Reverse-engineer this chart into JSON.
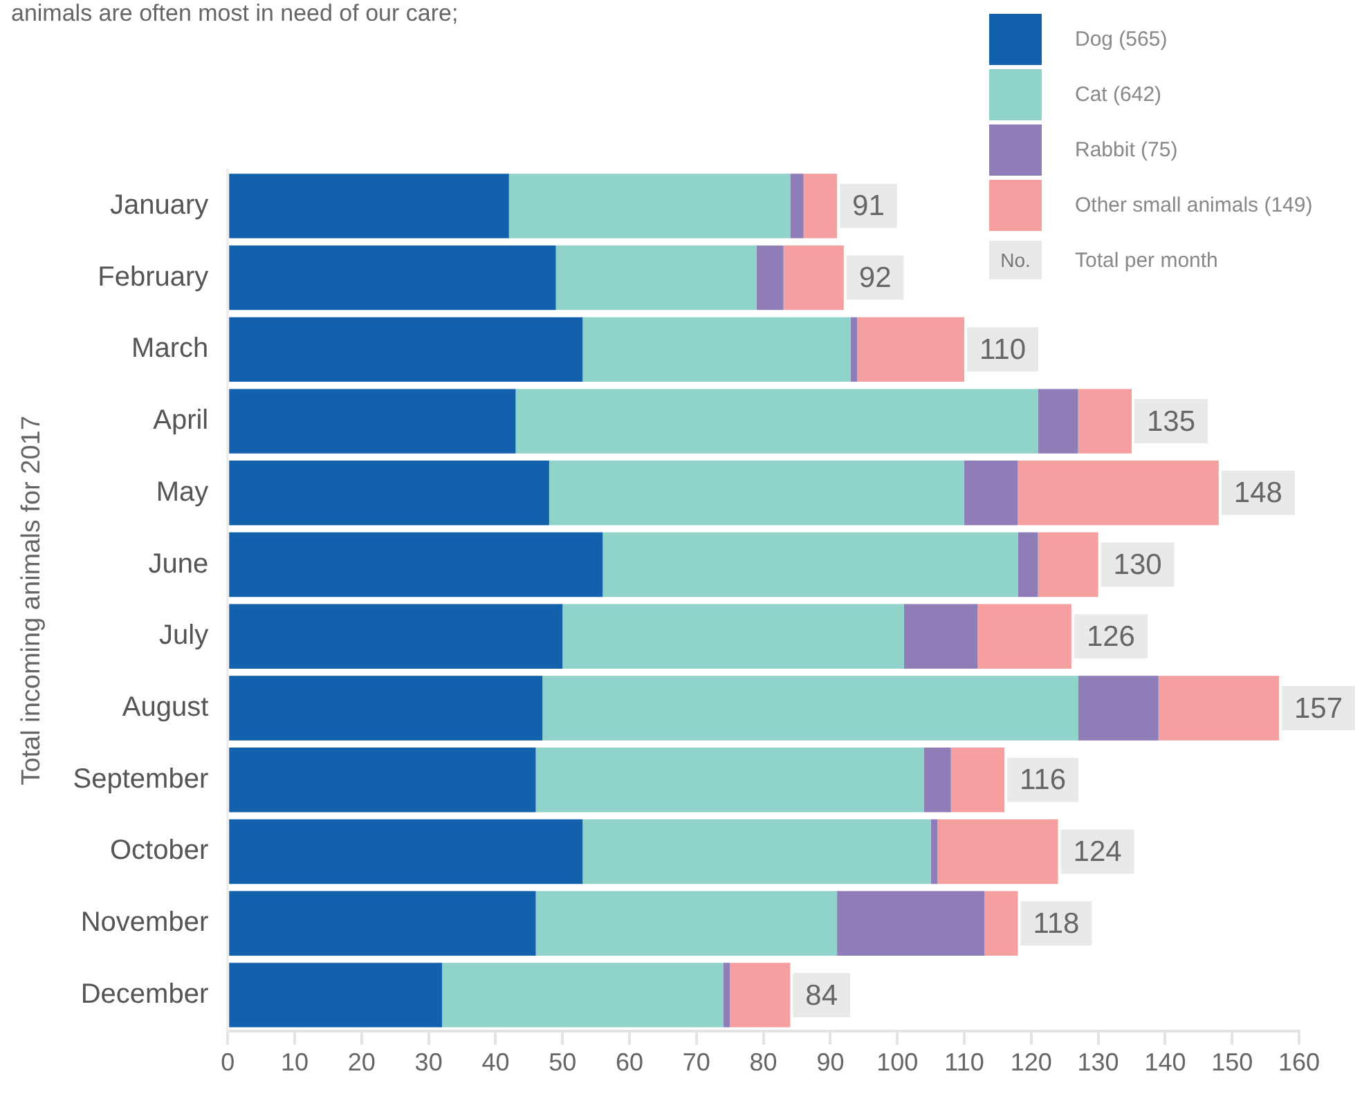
{
  "chart_data": {
    "type": "bar",
    "orientation": "horizontal",
    "stacked": true,
    "subtitle": "animals are often most in need of our care;",
    "ylabel": "Total incoming animals for 2017",
    "categories": [
      "January",
      "February",
      "March",
      "April",
      "May",
      "June",
      "July",
      "August",
      "September",
      "October",
      "November",
      "December"
    ],
    "series": [
      {
        "name": "Dog (565)",
        "color": "#1360ac",
        "values": [
          42,
          49,
          53,
          43,
          48,
          56,
          50,
          47,
          46,
          53,
          46,
          32
        ]
      },
      {
        "name": "Cat (642)",
        "color": "#90d3ca",
        "values": [
          42,
          30,
          40,
          78,
          62,
          62,
          51,
          80,
          58,
          52,
          45,
          42
        ]
      },
      {
        "name": "Rabbit (75)",
        "color": "#8f7db8",
        "values": [
          2,
          4,
          1,
          6,
          8,
          3,
          11,
          12,
          4,
          1,
          22,
          1
        ]
      },
      {
        "name": "Other small animals (149)",
        "color": "#f69fa0",
        "values": [
          5,
          9,
          16,
          8,
          30,
          9,
          14,
          18,
          8,
          18,
          5,
          9
        ]
      }
    ],
    "totals": [
      "91",
      "92",
      "110",
      "135",
      "148",
      "130",
      "126",
      "157",
      "116",
      "124",
      "118",
      "84"
    ],
    "annotations": [
      "No.",
      "Total per month"
    ],
    "xlim": [
      0,
      160
    ],
    "xticks": [
      0,
      10,
      20,
      30,
      40,
      50,
      60,
      70,
      80,
      90,
      100,
      110,
      120,
      130,
      140,
      150,
      160
    ],
    "grid": false,
    "legend": "top right"
  }
}
